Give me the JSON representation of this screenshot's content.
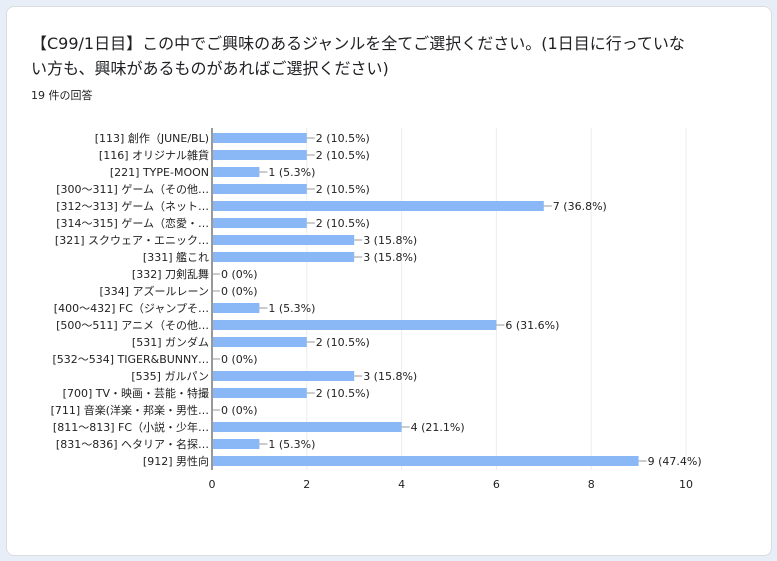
{
  "question": {
    "title": "【C99/1日目】この中でご興味のあるジャンルを全てご選択ください。(1日目に行っていない方も、興味があるものがあればご選択ください)",
    "response_count": "19 件の回答"
  },
  "chart_data": {
    "type": "bar",
    "orientation": "horizontal",
    "categories": [
      "[113] 創作（JUNE/BL)",
      "[116] オリジナル雑貨",
      "[221] TYPE-MOON",
      "[300～311] ゲーム（その他…",
      "[312～313] ゲーム（ネット…",
      "[314～315] ゲーム（恋愛・…",
      "[321] スクウェア・エニック…",
      "[331] 艦これ",
      "[332] 刀剣乱舞",
      "[334] アズールレーン",
      "[400～432] FC（ジャンプそ…",
      "[500～511] アニメ（その他…",
      "[531] ガンダム",
      "[532～534] TIGER&BUNNY…",
      "[535] ガルパン",
      "[700] TV・映画・芸能・特撮",
      "[711] 音楽(洋楽・邦楽・男性…",
      "[811～813] FC（小説・少年…",
      "[831～836] ヘタリア・名探…",
      "[912] 男性向"
    ],
    "values": [
      2,
      2,
      1,
      2,
      7,
      2,
      3,
      3,
      0,
      0,
      1,
      6,
      2,
      0,
      3,
      2,
      0,
      4,
      1,
      9
    ],
    "data_labels": [
      "2 (10.5%)",
      "2 (10.5%)",
      "1 (5.3%)",
      "2 (10.5%)",
      "7 (36.8%)",
      "2 (10.5%)",
      "3 (15.8%)",
      "3 (15.8%)",
      "0 (0%)",
      "0 (0%)",
      "1 (5.3%)",
      "6 (31.6%)",
      "2 (10.5%)",
      "0 (0%)",
      "3 (15.8%)",
      "2 (10.5%)",
      "0 (0%)",
      "4 (21.1%)",
      "1 (5.3%)",
      "9 (47.4%)"
    ],
    "xlim": [
      0,
      10
    ],
    "xticks": [
      "0",
      "2",
      "4",
      "6",
      "8",
      "10"
    ],
    "bar_color": "#8ab8f6",
    "grid": true
  }
}
